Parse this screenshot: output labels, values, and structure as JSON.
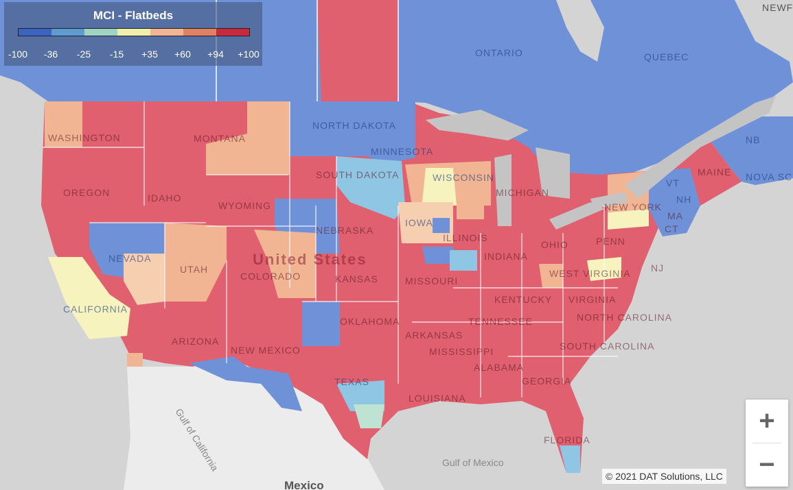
{
  "legend": {
    "title": "MCI - Flatbeds",
    "colors": [
      "#3a63c4",
      "#5c9cd0",
      "#9fd4c4",
      "#f0efac",
      "#f1b594",
      "#e08163",
      "#c9283d"
    ],
    "ticks": [
      "-100",
      "-36",
      "-25",
      "-15",
      "+35",
      "+60",
      "+94",
      "+100"
    ]
  },
  "map": {
    "country_label": "United States",
    "state_labels": [
      "WASHINGTON",
      "MONTANA",
      "NORTH DAKOTA",
      "MINNESOTA",
      "OREGON",
      "IDAHO",
      "SOUTH DAKOTA",
      "WISCONSIN",
      "MICHIGAN",
      "WYOMING",
      "NEBRASKA",
      "IOWA",
      "ILLINOIS",
      "INDIANA",
      "OHIO",
      "PENN",
      "NEVADA",
      "UTAH",
      "COLORADO",
      "KANSAS",
      "MISSOURI",
      "KENTUCKY",
      "WEST VIRGINIA",
      "VIRGINIA",
      "CALIFORNIA",
      "OKLAHOMA",
      "TENNESSEE",
      "NORTH CAROLINA",
      "ARIZONA",
      "NEW MEXICO",
      "ARKANSAS",
      "SOUTH CAROLINA",
      "MISSISSIPPI",
      "ALABAMA",
      "GEORGIA",
      "TEXAS",
      "LOUISIANA",
      "FLORIDA",
      "MAINE",
      "NEW YORK",
      "NJ",
      "CT",
      "MA",
      "VT",
      "NH",
      "NB",
      "NOVA SC"
    ],
    "province_labels": [
      "ONTARIO",
      "QUEBEC",
      "NEWF AND"
    ],
    "water_labels": [
      "Gulf of California",
      "Gulf of Mexico"
    ],
    "other_labels": [
      "Mexico"
    ]
  },
  "zoom": {
    "in_label": "+",
    "out_label": "−"
  },
  "copyright": "© 2021 DAT Solutions, LLC"
}
